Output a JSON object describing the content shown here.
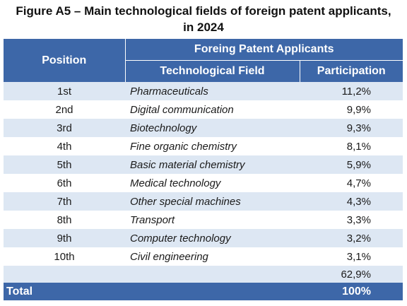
{
  "title": {
    "line1": "Figure A5 – Main technological fields of foreign patent applicants,",
    "line2": "in 2024"
  },
  "header": {
    "position": "Position",
    "group": "Foreing Patent Applicants",
    "field": "Technological Field",
    "participation": "Participation"
  },
  "rows": [
    {
      "position": "1st",
      "field": "Pharmaceuticals",
      "participation": "11,2%"
    },
    {
      "position": "2nd",
      "field": "Digital communication",
      "participation": "9,9%"
    },
    {
      "position": "3rd",
      "field": "Biotechnology",
      "participation": "9,3%"
    },
    {
      "position": "4th",
      "field": "Fine organic chemistry",
      "participation": "8,1%"
    },
    {
      "position": "5th",
      "field": "Basic material chemistry",
      "participation": "5,9%"
    },
    {
      "position": "6th",
      "field": "Medical technology",
      "participation": "4,7%"
    },
    {
      "position": "7th",
      "field": "Other special machines",
      "participation": "4,3%"
    },
    {
      "position": "8th",
      "field": "Transport",
      "participation": "3,3%"
    },
    {
      "position": "9th",
      "field": "Computer technology",
      "participation": "3,2%"
    },
    {
      "position": "10th",
      "field": "Civil engineering",
      "participation": "3,1%"
    }
  ],
  "subtotal": "62,9%",
  "total": {
    "label": "Total",
    "value": "100%"
  },
  "colors": {
    "header_bg": "#3d67a8",
    "stripe": "#dde7f3"
  }
}
